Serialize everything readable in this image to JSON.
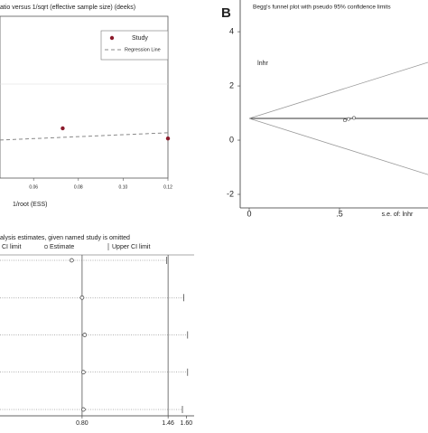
{
  "chart_data": [
    {
      "type": "deeks",
      "title": "atio versus 1/sqrt (effective sample size) (deeks)",
      "x_label": "1/root (ESS)",
      "xlim": [
        0.045,
        0.12
      ],
      "ylim": [
        0,
        4
      ],
      "xticks": [
        0.06,
        0.08,
        {
          "value": 0.1,
          "label": "0.10"
        },
        0.12
      ],
      "series": [
        {
          "name": "Study",
          "color": "#8b1a2b",
          "x": [
            0.073,
            0.12
          ],
          "values": [
            1.23,
            0.98
          ]
        },
        {
          "name": "Regression Line",
          "color": "#888888",
          "x": [
            0.045,
            0.12
          ],
          "values": [
            0.94,
            1.12
          ]
        }
      ]
    },
    {
      "type": "funnel",
      "panel_label": "B",
      "title": "Begg's funnel plot with pseudo 95% confidence limits",
      "x_label": "s.e. of: lnhr",
      "y_label": "lnhr",
      "xlim": [
        -0.05,
        0.99
      ],
      "ylim": [
        -2.5,
        5.17
      ],
      "xticks": [
        0,
        {
          "value": 0.5,
          "label": ".5"
        }
      ],
      "yticks": [
        4,
        2,
        0,
        -2
      ],
      "lines": [
        {
          "x": [
            0,
            0.99
          ],
          "values": [
            0.8,
            0.8
          ]
        },
        {
          "x": [
            0,
            0.99
          ],
          "values": [
            0.8,
            2.87
          ]
        },
        {
          "x": [
            0,
            0.99
          ],
          "values": [
            0.8,
            -1.27
          ]
        }
      ],
      "points": {
        "x": [
          0.53,
          0.55,
          0.58
        ],
        "values": [
          0.73,
          0.78,
          0.82
        ]
      }
    },
    {
      "type": "influence",
      "title": "alysis estimates, given named study is omitted",
      "legend": [
        "CI limit",
        "Estimate",
        "Upper CI limit"
      ],
      "xlim": [
        0.17,
        1.66
      ],
      "xticks": [
        {
          "value": 0.8,
          "label": "0.80"
        },
        {
          "value": 1.46,
          "label": "1.46"
        },
        {
          "value": 1.6,
          "label": "1.60"
        }
      ],
      "vlines": [
        0.8,
        1.46
      ],
      "categories": [
        null,
        null,
        null,
        null,
        null
      ],
      "estimates": [
        0.72,
        0.8,
        0.82,
        0.81,
        0.81
      ],
      "upper_ci": [
        1.45,
        1.58,
        1.61,
        1.61,
        1.57
      ]
    }
  ]
}
